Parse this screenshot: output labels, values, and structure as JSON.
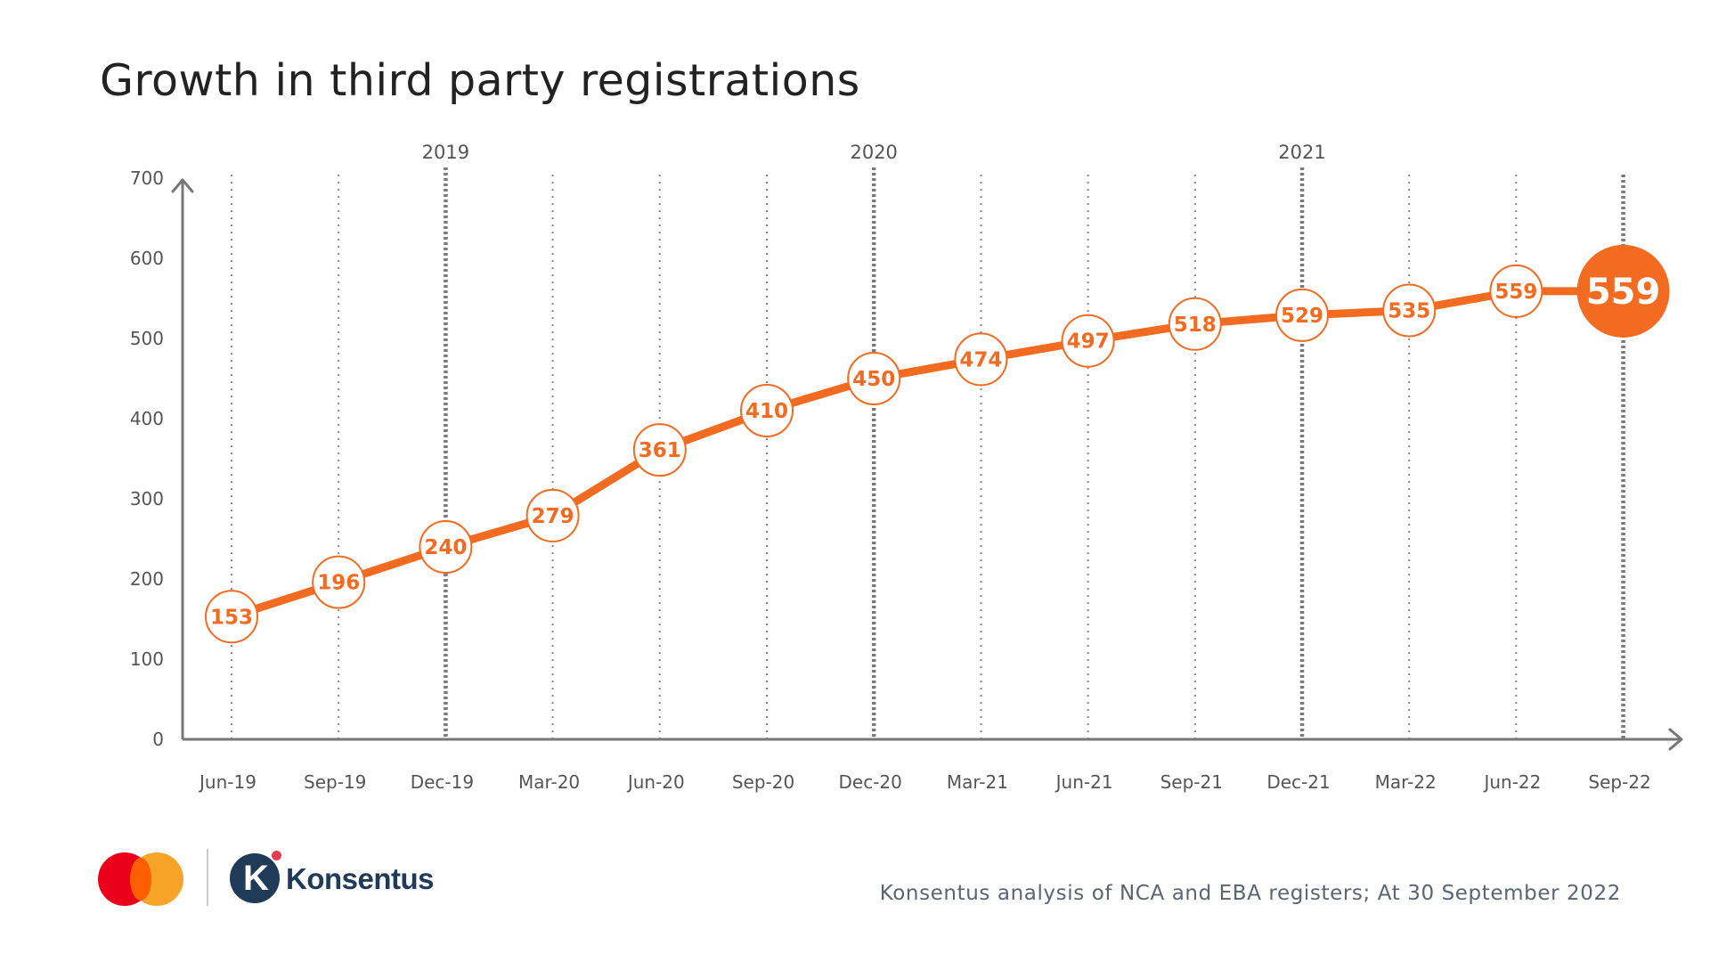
{
  "title": "Growth in third  party registrations",
  "footer": {
    "source": "Konsentus analysis of NCA and EBA registers;  At 30 September 2022"
  },
  "logos": {
    "partner_name": "Konsentus",
    "partner_mark": "K"
  },
  "colors": {
    "accent": "#f26b21",
    "axis": "#777777",
    "grid": "#888888",
    "text": "#555555"
  },
  "chart_data": {
    "type": "line",
    "title": "Growth in third  party registrations",
    "categories": [
      "Jun-19",
      "Sep-19",
      "Dec-19",
      "Mar-20",
      "Jun-20",
      "Sep-20",
      "Dec-20",
      "Mar-21",
      "Jun-21",
      "Sep-21",
      "Dec-21",
      "Mar-22",
      "Jun-22",
      "Sep-22"
    ],
    "series": [
      {
        "values": [
          153,
          196,
          240,
          279,
          361,
          410,
          450,
          474,
          497,
          518,
          529,
          535,
          559,
          559
        ]
      }
    ],
    "data_labels": [
      "153",
      "196",
      "240",
      "279",
      "361",
      "410",
      "450",
      "474",
      "497",
      "518",
      "529",
      "535",
      "559",
      "559"
    ],
    "year_labels": [
      {
        "category": "Dec-19",
        "label": "2019"
      },
      {
        "category": "Dec-20",
        "label": "2020"
      },
      {
        "category": "Dec-21",
        "label": "2021"
      }
    ],
    "ylim": [
      0,
      700
    ],
    "yticks": [
      "0",
      "100",
      "200",
      "300",
      "400",
      "500",
      "600",
      "700"
    ],
    "xlabel": "",
    "ylabel": "",
    "grid": "vertical dotted",
    "highlight_last": true
  }
}
